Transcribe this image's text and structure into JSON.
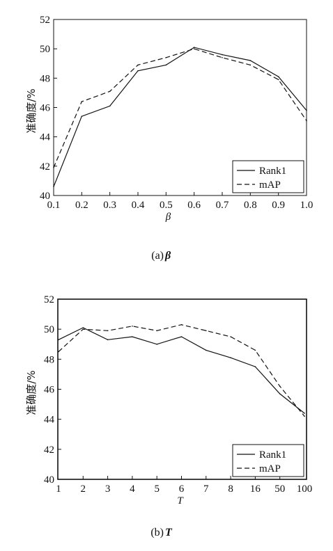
{
  "chart_data": [
    {
      "type": "line",
      "caption_prefix": "(a)",
      "caption_symbol": "β",
      "xlabel": "β",
      "ylabel": "准确度/%",
      "categories": [
        "0.1",
        "0.2",
        "0.3",
        "0.4",
        "0.5",
        "0.6",
        "0.7",
        "0.8",
        "0.9",
        "1.0"
      ],
      "ylim": [
        40,
        52
      ],
      "yticks": [
        "40",
        "42",
        "44",
        "46",
        "48",
        "50",
        "52"
      ],
      "legend_position": "bottom-right",
      "series": [
        {
          "name": "Rank1",
          "style": "solid",
          "values": [
            40.6,
            45.4,
            46.1,
            48.5,
            48.9,
            50.1,
            49.6,
            49.2,
            48.1,
            45.8
          ]
        },
        {
          "name": "mAP",
          "style": "dashed",
          "values": [
            41.9,
            46.4,
            47.1,
            48.9,
            49.4,
            50.0,
            49.4,
            48.9,
            47.9,
            45.1
          ]
        }
      ]
    },
    {
      "type": "line",
      "caption_prefix": "(b)",
      "caption_symbol": "T",
      "xlabel": "T",
      "ylabel": "准确度/%",
      "categories": [
        "1",
        "2",
        "3",
        "4",
        "5",
        "6",
        "7",
        "8",
        "16",
        "50",
        "100"
      ],
      "ylim": [
        40,
        52
      ],
      "yticks": [
        "40",
        "42",
        "44",
        "46",
        "48",
        "50",
        "52"
      ],
      "legend_position": "bottom-right",
      "series": [
        {
          "name": "Rank1",
          "style": "solid",
          "values": [
            49.3,
            50.1,
            49.3,
            49.5,
            49.0,
            49.5,
            48.6,
            48.1,
            47.5,
            45.7,
            44.4
          ]
        },
        {
          "name": "mAP",
          "style": "dashed",
          "values": [
            48.5,
            50.0,
            49.9,
            50.2,
            49.9,
            50.3,
            49.9,
            49.5,
            48.6,
            46.2,
            44.2
          ]
        }
      ]
    }
  ]
}
